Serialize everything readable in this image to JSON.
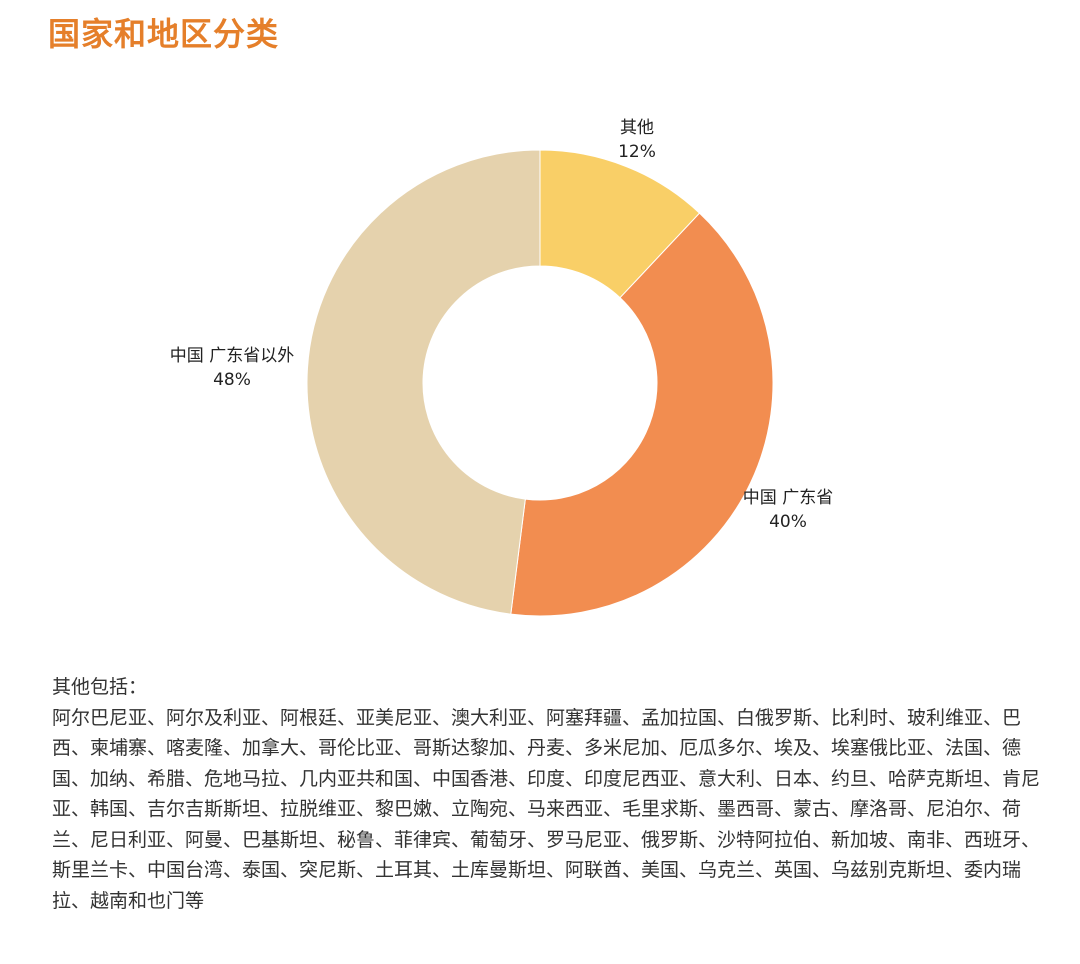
{
  "title": "国家和地区分类",
  "chart_data": {
    "type": "pie",
    "donut": true,
    "slices": [
      {
        "label": "其他",
        "value": 12,
        "display": "12%",
        "color": "#f9cf67"
      },
      {
        "label": "中国 广东省",
        "value": 40,
        "display": "40%",
        "color": "#f28d50"
      },
      {
        "label": "中国 广东省以外",
        "value": 48,
        "display": "48%",
        "color": "#e5d2ad"
      }
    ]
  },
  "note": {
    "heading": "其他包括：",
    "countries": "阿尔巴尼亚、阿尔及利亚、阿根廷、亚美尼亚、澳大利亚、阿塞拜疆、孟加拉国、白俄罗斯、比利时、玻利维亚、巴西、柬埔寨、喀麦隆、加拿大、哥伦比亚、哥斯达黎加、丹麦、多米尼加、厄瓜多尔、埃及、埃塞俄比亚、法国、德国、加纳、希腊、危地马拉、几内亚共和国、中国香港、印度、印度尼西亚、意大利、日本、约旦、哈萨克斯坦、肯尼亚、韩国、吉尔吉斯斯坦、拉脱维亚、黎巴嫩、立陶宛、马来西亚、毛里求斯、墨西哥、蒙古、摩洛哥、尼泊尔、荷兰、尼日利亚、阿曼、巴基斯坦、秘鲁、菲律宾、葡萄牙、罗马尼亚、俄罗斯、沙特阿拉伯、新加坡、南非、西班牙、斯里兰卡、中国台湾、泰国、突尼斯、土耳其、土库曼斯坦、阿联酋、美国、乌克兰、英国、乌兹别克斯坦、委内瑞拉、越南和也门等"
  }
}
